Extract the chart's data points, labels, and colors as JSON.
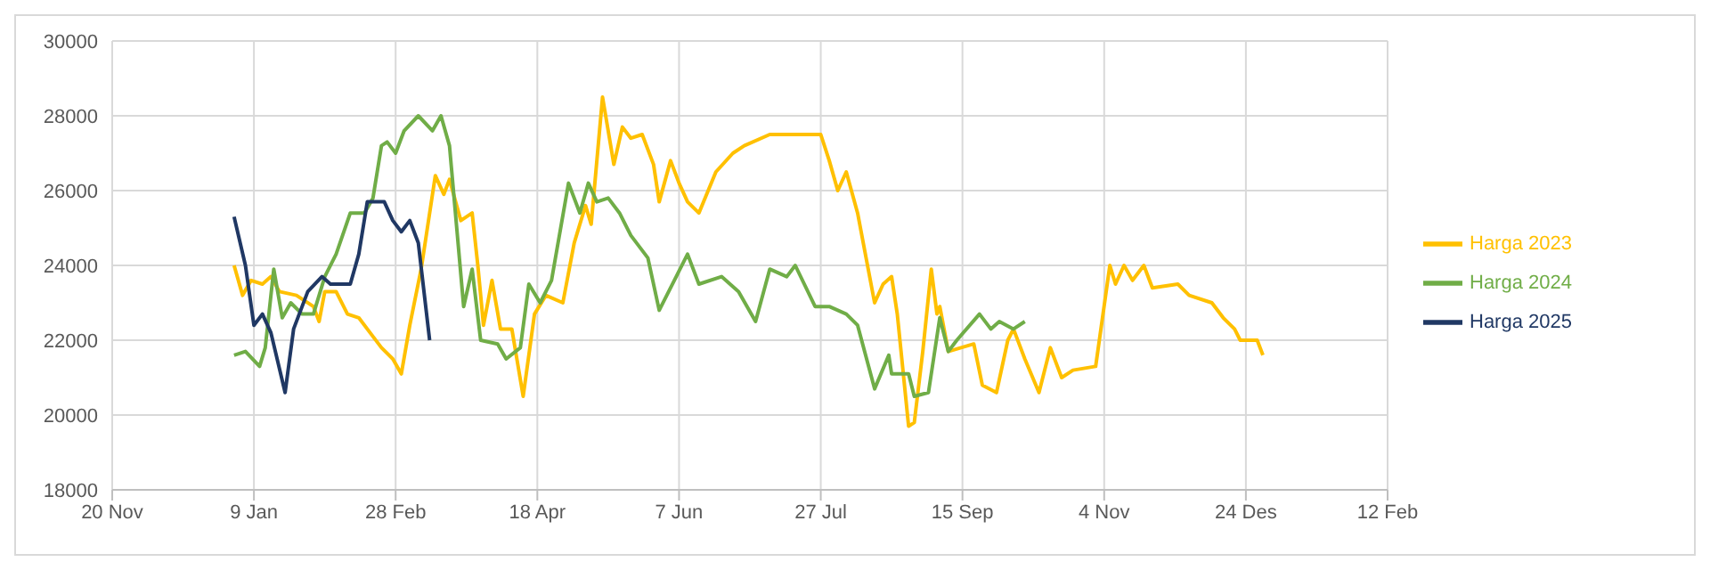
{
  "chart_data": {
    "type": "line",
    "legend": "right",
    "grid": true,
    "marker": "none",
    "line_style": "solid",
    "ylim": [
      18000,
      30000
    ],
    "yticks": [
      18000,
      20000,
      22000,
      24000,
      26000,
      28000,
      30000
    ],
    "xlim": [
      "2023-11-20",
      "2025-02-12"
    ],
    "xticks": [
      {
        "value": "2023-11-20",
        "label": "20 Nov"
      },
      {
        "value": "2024-01-09",
        "label": "9 Jan"
      },
      {
        "value": "2024-02-28",
        "label": "28 Feb"
      },
      {
        "value": "2024-04-18",
        "label": "18 Apr"
      },
      {
        "value": "2024-06-07",
        "label": "7 Jun"
      },
      {
        "value": "2024-07-27",
        "label": "27 Jul"
      },
      {
        "value": "2024-09-15",
        "label": "15 Sep"
      },
      {
        "value": "2024-11-04",
        "label": "4 Nov"
      },
      {
        "value": "2024-12-24",
        "label": "24 Des"
      },
      {
        "value": "2025-02-12",
        "label": "12 Feb"
      }
    ],
    "series": [
      {
        "name": "Harga 2023",
        "color": "#ffc000",
        "x": [
          "2024-01-02",
          "2024-01-05",
          "2024-01-08",
          "2024-01-12",
          "2024-01-15",
          "2024-01-18",
          "2024-01-24",
          "2024-01-30",
          "2024-02-01",
          "2024-02-03",
          "2024-02-07",
          "2024-02-11",
          "2024-02-15",
          "2024-02-19",
          "2024-02-23",
          "2024-02-27",
          "2024-03-01",
          "2024-03-04",
          "2024-03-08",
          "2024-03-13",
          "2024-03-16",
          "2024-03-18",
          "2024-03-22",
          "2024-03-26",
          "2024-03-28",
          "2024-03-30",
          "2024-04-02",
          "2024-04-05",
          "2024-04-09",
          "2024-04-13",
          "2024-04-17",
          "2024-04-21",
          "2024-04-27",
          "2024-05-01",
          "2024-05-05",
          "2024-05-07",
          "2024-05-11",
          "2024-05-15",
          "2024-05-18",
          "2024-05-21",
          "2024-05-25",
          "2024-05-29",
          "2024-05-31",
          "2024-06-04",
          "2024-06-07",
          "2024-06-10",
          "2024-06-14",
          "2024-06-20",
          "2024-06-26",
          "2024-06-30",
          "2024-07-09",
          "2024-07-27",
          "2024-07-30",
          "2024-08-02",
          "2024-08-05",
          "2024-08-09",
          "2024-08-11",
          "2024-08-15",
          "2024-08-18",
          "2024-08-21",
          "2024-08-23",
          "2024-08-27",
          "2024-08-29",
          "2024-09-01",
          "2024-09-04",
          "2024-09-06",
          "2024-09-07",
          "2024-09-10",
          "2024-09-19",
          "2024-09-22",
          "2024-09-27",
          "2024-10-01",
          "2024-10-03",
          "2024-10-07",
          "2024-10-12",
          "2024-10-16",
          "2024-10-20",
          "2024-10-24",
          "2024-11-01",
          "2024-11-06",
          "2024-11-08",
          "2024-11-11",
          "2024-11-14",
          "2024-11-18",
          "2024-11-21",
          "2024-11-30",
          "2024-12-04",
          "2024-12-12",
          "2024-12-16",
          "2024-12-20",
          "2024-12-22",
          "2024-12-28",
          "2024-12-30"
        ],
        "values": [
          24000,
          23200,
          23600,
          23500,
          23700,
          23300,
          23200,
          22900,
          22500,
          23300,
          23300,
          22700,
          22600,
          22200,
          21800,
          21500,
          21100,
          22400,
          23900,
          26400,
          25900,
          26300,
          25200,
          25400,
          24000,
          22400,
          23600,
          22300,
          22300,
          20500,
          22700,
          23200,
          23000,
          24600,
          25600,
          25100,
          28500,
          26700,
          27700,
          27400,
          27500,
          26700,
          25700,
          26800,
          26200,
          25700,
          25400,
          26500,
          27000,
          27200,
          27500,
          27500,
          26800,
          26000,
          26500,
          25400,
          24600,
          23000,
          23500,
          23700,
          22700,
          19700,
          19800,
          21700,
          23900,
          22700,
          22900,
          21700,
          21900,
          20800,
          20600,
          22000,
          22300,
          21500,
          20600,
          21800,
          21000,
          21200,
          21300,
          24000,
          23500,
          24000,
          23600,
          24000,
          23400,
          23500,
          23200,
          23000,
          22600,
          22300,
          22000,
          22000,
          21600
        ]
      },
      {
        "name": "Harga 2024",
        "color": "#70ad47",
        "x": [
          "2024-01-02",
          "2024-01-06",
          "2024-01-11",
          "2024-01-13",
          "2024-01-16",
          "2024-01-19",
          "2024-01-22",
          "2024-01-26",
          "2024-01-30",
          "2024-02-03",
          "2024-02-07",
          "2024-02-12",
          "2024-02-17",
          "2024-02-20",
          "2024-02-23",
          "2024-02-25",
          "2024-02-28",
          "2024-03-02",
          "2024-03-07",
          "2024-03-12",
          "2024-03-15",
          "2024-03-18",
          "2024-03-23",
          "2024-03-26",
          "2024-03-29",
          "2024-04-04",
          "2024-04-07",
          "2024-04-12",
          "2024-04-15",
          "2024-04-19",
          "2024-04-23",
          "2024-04-29",
          "2024-05-03",
          "2024-05-06",
          "2024-05-09",
          "2024-05-13",
          "2024-05-17",
          "2024-05-21",
          "2024-05-27",
          "2024-05-31",
          "2024-06-06",
          "2024-06-10",
          "2024-06-14",
          "2024-06-22",
          "2024-06-28",
          "2024-07-04",
          "2024-07-09",
          "2024-07-15",
          "2024-07-18",
          "2024-07-25",
          "2024-07-30",
          "2024-08-05",
          "2024-08-09",
          "2024-08-15",
          "2024-08-20",
          "2024-08-21",
          "2024-08-27",
          "2024-08-29",
          "2024-09-03",
          "2024-09-07",
          "2024-09-10",
          "2024-09-13",
          "2024-09-21",
          "2024-09-25",
          "2024-09-28",
          "2024-10-03",
          "2024-10-07"
        ],
        "values": [
          21600,
          21700,
          21300,
          21800,
          23900,
          22600,
          23000,
          22700,
          22700,
          23700,
          24300,
          25400,
          25400,
          25800,
          27200,
          27300,
          27000,
          27600,
          28000,
          27600,
          28000,
          27200,
          22900,
          23900,
          22000,
          21900,
          21500,
          21800,
          23500,
          23000,
          23600,
          26200,
          25400,
          26200,
          25700,
          25800,
          25400,
          24800,
          24200,
          22800,
          23700,
          24300,
          23500,
          23700,
          23300,
          22500,
          23900,
          23700,
          24000,
          22900,
          22900,
          22700,
          22400,
          20700,
          21600,
          21100,
          21100,
          20500,
          20600,
          22600,
          21700,
          22000,
          22700,
          22300,
          22500,
          22300,
          22500
        ]
      },
      {
        "name": "Harga 2025",
        "color": "#203864",
        "x": [
          "2024-01-02",
          "2024-01-06",
          "2024-01-09",
          "2024-01-12",
          "2024-01-15",
          "2024-01-20",
          "2024-01-23",
          "2024-01-28",
          "2024-02-02",
          "2024-02-05",
          "2024-02-12",
          "2024-02-15",
          "2024-02-18",
          "2024-02-24",
          "2024-02-27",
          "2024-03-01",
          "2024-03-04",
          "2024-03-07",
          "2024-03-11"
        ],
        "values": [
          25300,
          24000,
          22400,
          22700,
          22200,
          20600,
          22300,
          23300,
          23700,
          23500,
          23500,
          24300,
          25700,
          25700,
          25200,
          24900,
          25200,
          24600,
          22000
        ]
      }
    ]
  }
}
